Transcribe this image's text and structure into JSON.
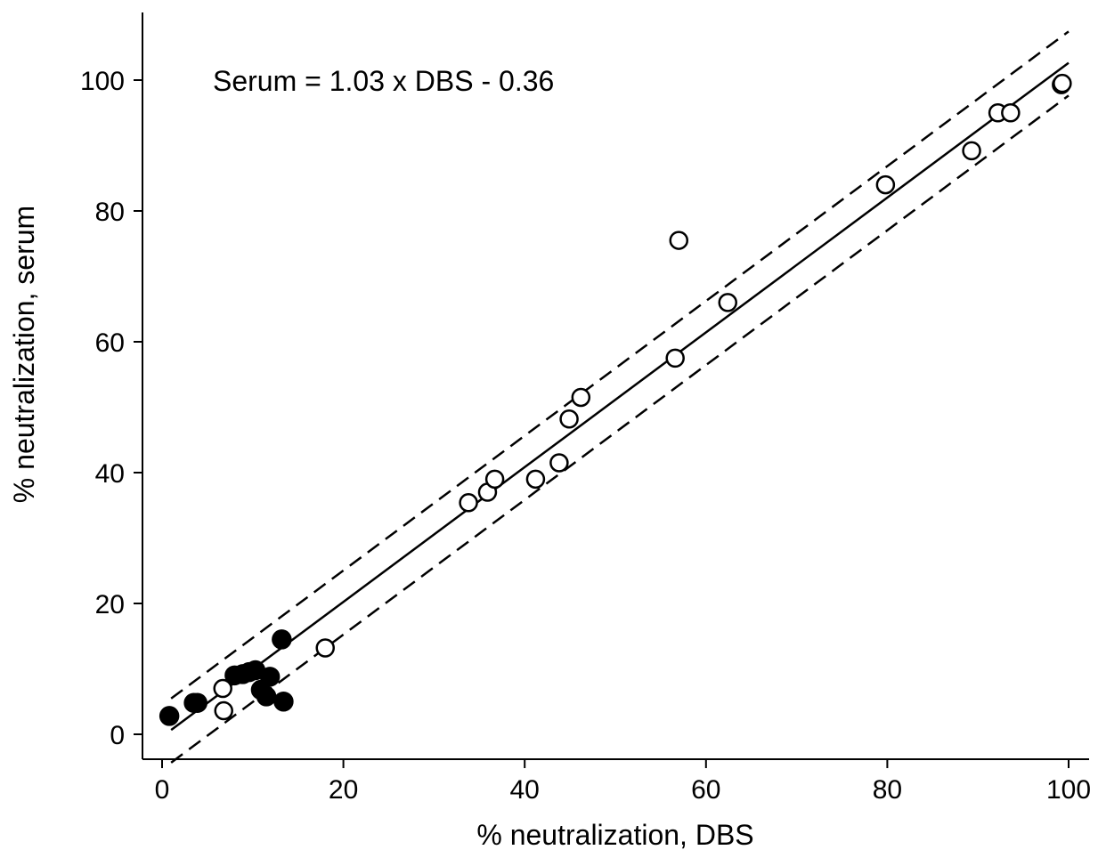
{
  "chart_data": {
    "type": "scatter",
    "title": "",
    "xlabel": "% neutralization, DBS",
    "ylabel": "% neutralization, serum",
    "xlim": [
      -2.5,
      102
    ],
    "ylim": [
      -3.5,
      110
    ],
    "x_ticks": [
      0,
      20,
      40,
      60,
      80,
      100
    ],
    "y_ticks": [
      0,
      20,
      40,
      60,
      80,
      100
    ],
    "x_tick_labels": [
      "0",
      "20",
      "40",
      "60",
      "80",
      "100"
    ],
    "y_tick_labels": [
      "0",
      "20",
      "40",
      "60",
      "80",
      "100"
    ],
    "grid": false,
    "legend": "none",
    "annotation": "Serum = 1.03 x DBS - 0.36",
    "regression": {
      "slope": 1.03,
      "intercept": -0.36,
      "x_range": [
        1,
        100
      ]
    },
    "confidence_band": {
      "upper_offset": 4.8,
      "lower_offset": -5.0,
      "x_range": [
        1,
        100
      ]
    },
    "series": [
      {
        "marker": "open-circle",
        "points": [
          [
            6.7,
            7.0
          ],
          [
            6.8,
            3.6
          ],
          [
            18.0,
            13.2
          ],
          [
            33.8,
            35.4
          ],
          [
            35.9,
            37.0
          ],
          [
            36.7,
            39.0
          ],
          [
            41.2,
            39.0
          ],
          [
            43.8,
            41.5
          ],
          [
            44.9,
            48.2
          ],
          [
            46.2,
            51.5
          ],
          [
            56.6,
            57.5
          ],
          [
            57.0,
            75.5
          ],
          [
            62.4,
            66.0
          ],
          [
            79.8,
            84.0
          ],
          [
            89.3,
            89.2
          ],
          [
            92.2,
            95.0
          ],
          [
            93.6,
            95.0
          ],
          [
            99.2,
            99.3
          ],
          [
            99.3,
            99.5
          ]
        ]
      },
      {
        "marker": "filled-circle",
        "points": [
          [
            0.8,
            2.8
          ],
          [
            3.5,
            4.8
          ],
          [
            3.9,
            4.8
          ],
          [
            8.0,
            9.0
          ],
          [
            8.9,
            9.2
          ],
          [
            9.6,
            9.5
          ],
          [
            10.3,
            9.8
          ],
          [
            10.9,
            6.8
          ],
          [
            11.5,
            5.8
          ],
          [
            11.9,
            8.8
          ],
          [
            13.2,
            14.5
          ],
          [
            13.4,
            5.0
          ]
        ]
      }
    ],
    "colors": {
      "marks": "#000000",
      "background": "#ffffff"
    }
  }
}
